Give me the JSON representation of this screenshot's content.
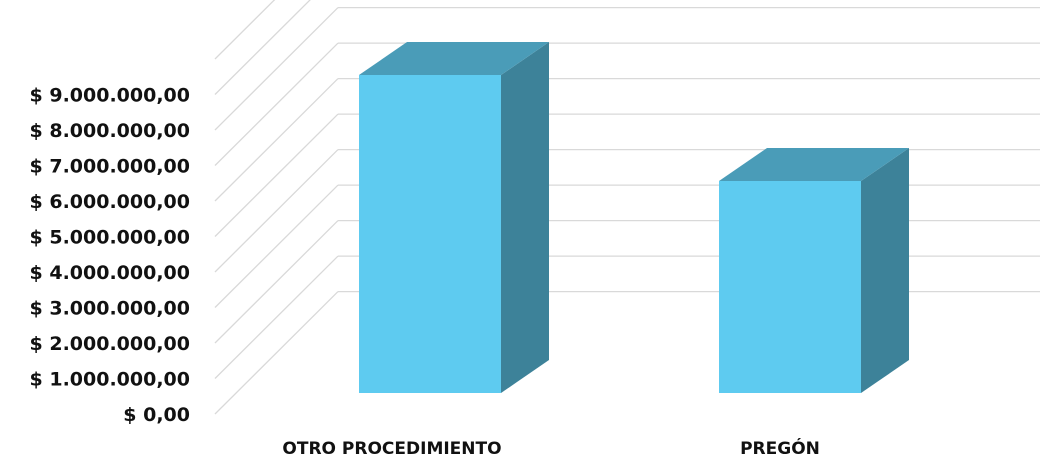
{
  "chart_data": {
    "type": "bar",
    "style": "3d-column",
    "categories": [
      "OTRO PROCEDIMIENTO",
      "PREGÓN"
    ],
    "values": [
      9000000,
      6000000
    ],
    "ylim": [
      0,
      9000000
    ],
    "yticks": [
      0,
      1000000,
      2000000,
      3000000,
      4000000,
      5000000,
      6000000,
      7000000,
      8000000,
      9000000
    ],
    "ytick_labels": [
      "$ 0,00",
      "$ 1.000.000,00",
      "$ 2.000.000,00",
      "$ 3.000.000,00",
      "$ 4.000.000,00",
      "$ 5.000.000,00",
      "$ 6.000.000,00",
      "$ 7.000.000,00",
      "$ 8.000.000,00",
      "$ 9.000.000,00"
    ],
    "grid": true,
    "legend": "none",
    "colors": {
      "front": "#5ecbf0",
      "top": "#4a9cb8",
      "side": "#3d8299",
      "grid": "#d9d9d9"
    }
  }
}
